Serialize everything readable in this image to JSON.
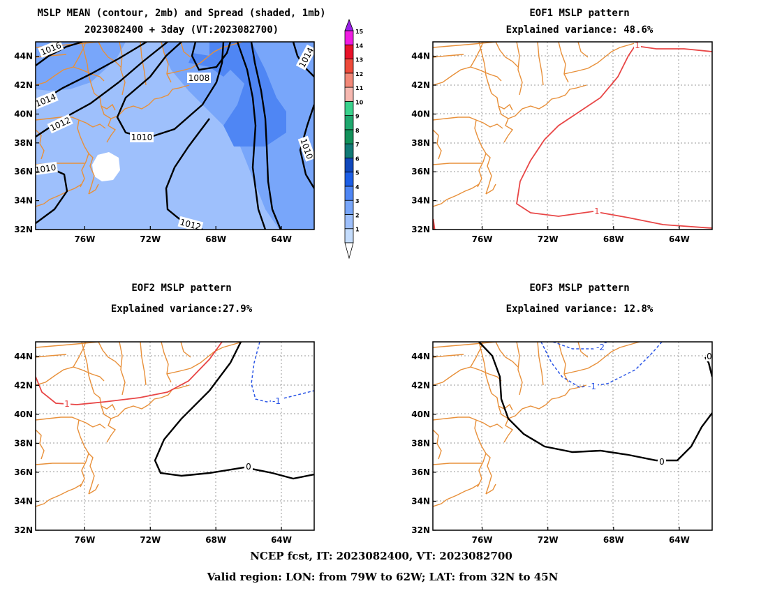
{
  "panels": [
    {
      "id": "mean",
      "title_lines": [
        "MSLP MEAN (contour, 2mb) and Spread (shaded, 1mb)",
        "2023082400 + 3day (VT:2023082700)"
      ],
      "contours": [
        {
          "value": "1016",
          "color": "#000000",
          "dashed": false
        },
        {
          "value": "1014",
          "color": "#000000",
          "dashed": false
        },
        {
          "value": "1012",
          "color": "#000000",
          "dashed": false
        },
        {
          "value": "1010",
          "color": "#000000",
          "dashed": false
        },
        {
          "value": "1008",
          "color": "#000000",
          "dashed": false
        }
      ]
    },
    {
      "id": "eof1",
      "title_lines": [
        "EOF1 MSLP pattern",
        "Explained variance: 48.6%"
      ],
      "explained_variance_pct": 48.6,
      "contours": [
        {
          "value": "1",
          "color": "#e84646",
          "dashed": false
        }
      ]
    },
    {
      "id": "eof2",
      "title_lines": [
        "EOF2 MSLP pattern",
        "Explained variance:27.9%"
      ],
      "explained_variance_pct": 27.9,
      "contours": [
        {
          "value": "1",
          "color": "#e84646",
          "dashed": false
        },
        {
          "value": "0",
          "color": "#000000",
          "dashed": false
        },
        {
          "value": "-1",
          "color": "#2a55e6",
          "dashed": true
        }
      ]
    },
    {
      "id": "eof3",
      "title_lines": [
        "EOF3 MSLP pattern",
        "Explained variance: 12.8%"
      ],
      "explained_variance_pct": 12.8,
      "contours": [
        {
          "value": "0",
          "color": "#000000",
          "dashed": false
        },
        {
          "value": "-1",
          "color": "#2a55e6",
          "dashed": true
        },
        {
          "value": "-2",
          "color": "#2a55e6",
          "dashed": true
        }
      ]
    }
  ],
  "axes": {
    "lon_ticks": [
      "76W",
      "72W",
      "68W",
      "64W"
    ],
    "lat_ticks": [
      "44N",
      "42N",
      "40N",
      "38N",
      "36N",
      "34N",
      "32N"
    ],
    "lon_range": [
      -79,
      -62
    ],
    "lat_range": [
      32,
      45
    ]
  },
  "colorbar": {
    "levels": [
      "1",
      "2",
      "3",
      "4",
      "5",
      "6",
      "7",
      "8",
      "9",
      "10",
      "11",
      "12",
      "13",
      "14",
      "15"
    ],
    "colors": [
      "#c4dcfc",
      "#9ec0fc",
      "#78a6fa",
      "#4f86f4",
      "#1c5ee6",
      "#1048bc",
      "#117a76",
      "#12915a",
      "#1ea86e",
      "#3ad28c",
      "#f6b8b0",
      "#f28878",
      "#ee4a3a",
      "#e8122a",
      "#f01ce2"
    ],
    "top_color": "#9a20e8"
  },
  "colors": {
    "coastline": "#e8903a",
    "shade_light": "#9ec0fc",
    "shade_mid": "#78a6fa",
    "shade_dark": "#4f86f4"
  },
  "footer": {
    "line1": "NCEP fcst, IT: 2023082400, VT: 2023082700",
    "line2": "Valid region: LON: from 79W to 62W; LAT: from 32N to 45N"
  }
}
